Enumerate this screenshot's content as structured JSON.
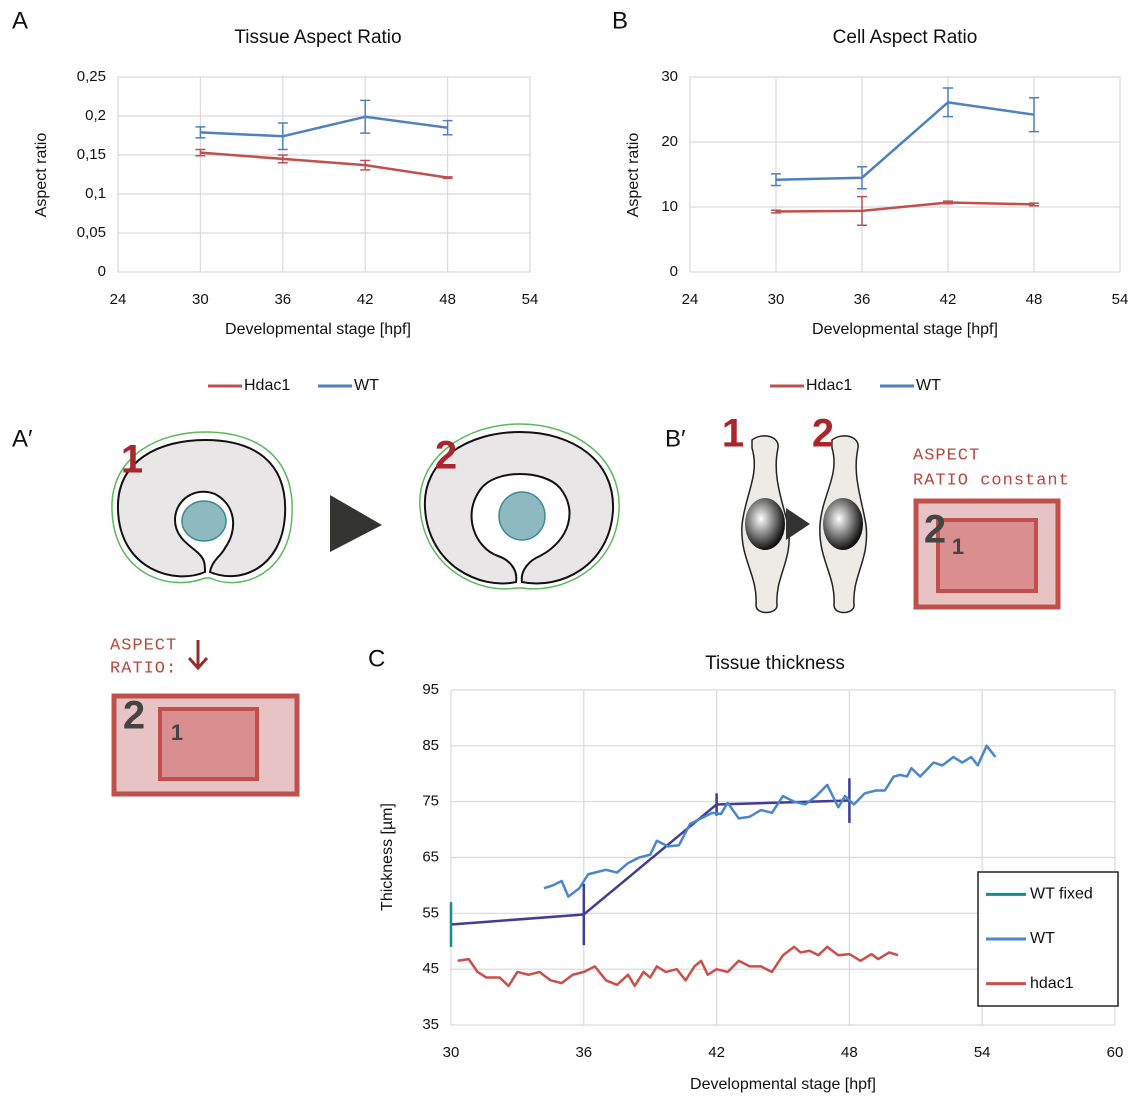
{
  "chart_data": [
    {
      "type": "line",
      "title": "Tissue Aspect Ratio",
      "xlabel": "Developmental stage [hpf]",
      "ylabel": "Aspect ratio",
      "x": [
        30,
        36,
        42,
        48
      ],
      "xlim": [
        24,
        54
      ],
      "xticks": [
        24,
        30,
        36,
        42,
        48,
        54
      ],
      "ylim": [
        0,
        0.25
      ],
      "yticks": [
        0,
        {
          "value": 0.05,
          "label": "0,05"
        },
        {
          "value": 0.1,
          "label": "0,1"
        },
        {
          "value": 0.15,
          "label": "0,15"
        },
        {
          "value": 0.2,
          "label": "0,2"
        },
        {
          "value": 0.25,
          "label": "0,25"
        }
      ],
      "grid": true,
      "legend": "bottom",
      "series": [
        {
          "name": "Hdac1",
          "color": "#c0504d",
          "values": [
            0.153,
            0.145,
            0.137,
            0.121
          ],
          "errors": [
            0.004,
            0.005,
            0.006,
            0.001
          ]
        },
        {
          "name": "WT",
          "color": "#4f81bd",
          "values": [
            0.179,
            0.174,
            0.199,
            0.185
          ],
          "errors": [
            0.007,
            0.017,
            0.021,
            0.009
          ]
        }
      ]
    },
    {
      "type": "line",
      "title": "Cell Aspect Ratio",
      "xlabel": "Developmental stage [hpf]",
      "ylabel": "Aspect ratio",
      "x": [
        30,
        36,
        42,
        48
      ],
      "xlim": [
        24,
        54
      ],
      "xticks": [
        24,
        30,
        36,
        42,
        48,
        54
      ],
      "ylim": [
        0,
        30
      ],
      "yticks": [
        0,
        10,
        20,
        30
      ],
      "grid": true,
      "legend": "bottom",
      "series": [
        {
          "name": "Hdac1",
          "color": "#c0504d",
          "values": [
            9.3,
            9.4,
            10.7,
            10.4
          ],
          "errors": [
            0.2,
            2.2,
            0.2,
            0.2
          ]
        },
        {
          "name": "WT",
          "color": "#4f81bd",
          "values": [
            14.2,
            14.5,
            26.1,
            24.2
          ],
          "errors": [
            0.9,
            1.7,
            2.2,
            2.6
          ]
        }
      ]
    },
    {
      "type": "line",
      "title": "Tissue thickness",
      "xlabel": "Developmental stage [hpf]",
      "ylabel": "Thickness [µm]",
      "xlim": [
        30,
        60
      ],
      "xticks": [
        30,
        36,
        42,
        48,
        54,
        60
      ],
      "ylim": [
        35,
        95
      ],
      "yticks": [
        35,
        45,
        55,
        65,
        75,
        85,
        95
      ],
      "grid": true,
      "legend": "right",
      "series": [
        {
          "name": "WT fixed",
          "color": "#3f3d96",
          "legend_color": "#138d8d",
          "x": [
            30,
            36,
            42,
            48
          ],
          "values": [
            53,
            54.8,
            74.5,
            75.2
          ],
          "errors": [
            4,
            5.5,
            2,
            4
          ]
        },
        {
          "name": "WT",
          "color": "#4a86c8",
          "x": [
            34.2,
            34.6,
            35,
            35.3,
            35.8,
            36.2,
            37,
            37.5,
            38,
            38.5,
            39,
            39.3,
            39.8,
            40.3,
            40.8,
            41.3,
            41.8,
            42.2,
            42.5,
            43,
            43.5,
            44,
            44.5,
            45,
            45.5,
            46,
            46.5,
            47,
            47.5,
            47.8,
            48.2,
            48.7,
            49.2,
            49.6,
            50,
            50.3,
            50.6,
            50.8,
            51.2,
            51.8,
            52.2,
            52.7,
            53.1,
            53.5,
            53.8,
            54.2,
            54.6
          ],
          "values": [
            59.5,
            60,
            60.8,
            58,
            59.5,
            62,
            62.8,
            62.3,
            64,
            65,
            65.5,
            68,
            67,
            67.2,
            71,
            72,
            73,
            72.8,
            74.8,
            72,
            72.3,
            73.5,
            73,
            76,
            75,
            74.5,
            76,
            78,
            74,
            76,
            74.5,
            76.5,
            77,
            77,
            79.5,
            79.8,
            79.5,
            81,
            79.5,
            82,
            81.5,
            83,
            82,
            83,
            81.5,
            85,
            83
          ]
        },
        {
          "name": "hdac1",
          "color": "#c9504a",
          "x": [
            30.3,
            30.8,
            31.2,
            31.6,
            32.2,
            32.6,
            33,
            33.5,
            34,
            34.5,
            35,
            35.5,
            36,
            36.5,
            37,
            37.5,
            38,
            38.3,
            38.7,
            39,
            39.3,
            39.7,
            40.2,
            40.6,
            41,
            41.3,
            41.6,
            42,
            42.5,
            43,
            43.5,
            44,
            44.5,
            45,
            45.5,
            45.8,
            46.2,
            46.6,
            47,
            47.5,
            48,
            48.5,
            49,
            49.3,
            49.8,
            50.2
          ],
          "values": [
            46.5,
            46.8,
            44.5,
            43.5,
            43.5,
            42,
            44.5,
            44,
            44.5,
            43,
            42.5,
            44,
            44.5,
            45.5,
            43,
            42.2,
            44,
            42,
            44.5,
            43.5,
            45.5,
            44.5,
            45,
            43,
            45.5,
            46.5,
            44,
            45,
            44.5,
            46.5,
            45.5,
            45.5,
            44.5,
            47.5,
            49,
            48,
            48.3,
            47.5,
            49,
            47.5,
            47.7,
            46.5,
            47.7,
            46.8,
            48,
            47.5
          ]
        }
      ]
    }
  ],
  "panel_labels": [
    "A",
    "B",
    "A′",
    "B′",
    "C"
  ],
  "diagram_a_prime": {
    "steps": [
      "1",
      "2"
    ],
    "caption_lines": [
      "ASPECT",
      "RATIO:"
    ],
    "box_labels": [
      "2",
      "1"
    ]
  },
  "diagram_b_prime": {
    "steps": [
      "1",
      "2"
    ],
    "caption_lines": [
      "ASPECT",
      "RATIO constant"
    ],
    "box_labels": [
      "2",
      "1"
    ]
  }
}
